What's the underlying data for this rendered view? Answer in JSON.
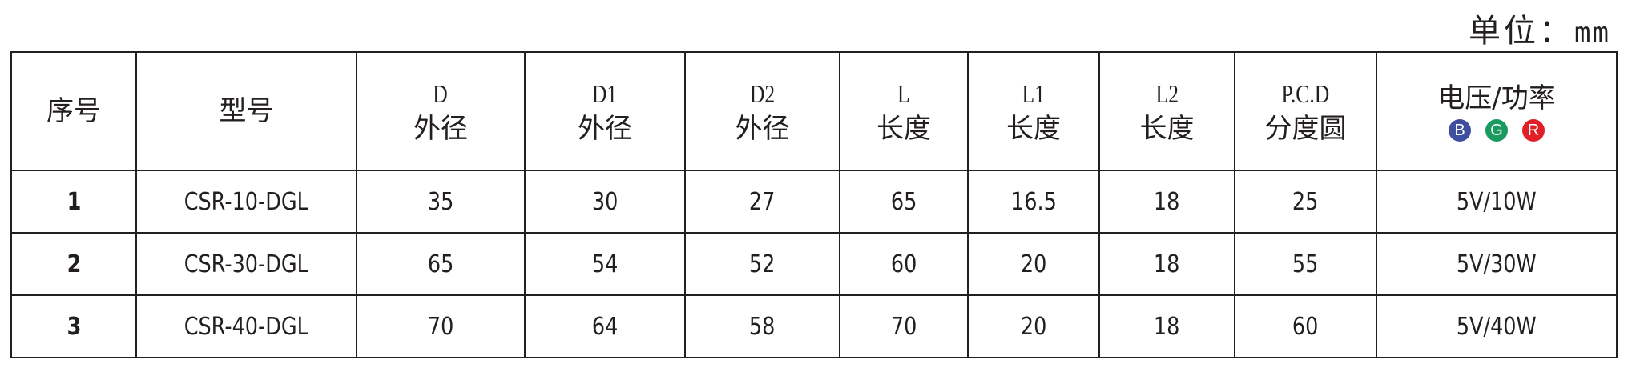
{
  "unit_label": "单位：",
  "unit_value": "mm",
  "headers": [
    {
      "symbol": "",
      "name": "序号"
    },
    {
      "symbol": "",
      "name": "型号"
    },
    {
      "symbol": "D",
      "name": "外径"
    },
    {
      "symbol": "D1",
      "name": "外径"
    },
    {
      "symbol": "D2",
      "name": "外径"
    },
    {
      "symbol": "L",
      "name": "长度"
    },
    {
      "symbol": "L1",
      "name": "长度"
    },
    {
      "symbol": "L2",
      "name": "长度"
    },
    {
      "symbol": "P.C.D",
      "name": "分度圆"
    },
    {
      "symbol": "",
      "name": "电压/功率"
    }
  ],
  "color_badges": [
    {
      "letter": "B",
      "color": "#3f4fa0"
    },
    {
      "letter": "G",
      "color": "#1a9a5e"
    },
    {
      "letter": "R",
      "color": "#e11f26"
    }
  ],
  "rows": [
    [
      "1",
      "CSR-10-DGL",
      "35",
      "30",
      "27",
      "65",
      "16.5",
      "18",
      "25",
      "5V/10W"
    ],
    [
      "2",
      "CSR-30-DGL",
      "65",
      "54",
      "52",
      "60",
      "20",
      "18",
      "55",
      "5V/30W"
    ],
    [
      "3",
      "CSR-40-DGL",
      "70",
      "64",
      "58",
      "70",
      "20",
      "18",
      "60",
      "5V/40W"
    ]
  ]
}
